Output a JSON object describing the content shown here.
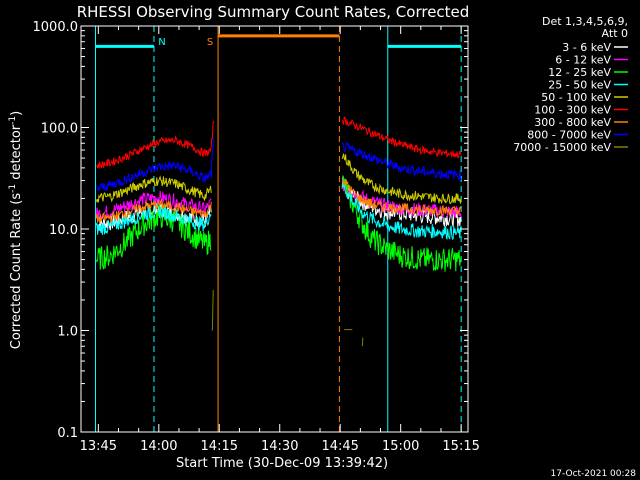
{
  "chart_data": {
    "type": "line",
    "title": "RHESSI Observing Summary Count Rates, Corrected",
    "xlabel": "Start Time (30-Dec-09 13:39:42)",
    "ylabel": "Corrected Count Rate (s-1 detector-1)",
    "ylabel_parts": {
      "main": "Corrected Count Rate (s",
      "exp1": "-1",
      "mid": " detector",
      "exp2": "-1",
      "end": ")"
    },
    "yscale": "log",
    "ylim": [
      0.1,
      1000
    ],
    "xlim_minutes": [
      13.667,
      15.3
    ],
    "x_units": "minutes after 13:00 UT",
    "x_ticks": [
      {
        "value": 45,
        "label": "13:45"
      },
      {
        "value": 60,
        "label": "14:00"
      },
      {
        "value": 75,
        "label": "14:15"
      },
      {
        "value": 90,
        "label": "14:30"
      },
      {
        "value": 105,
        "label": "14:45"
      },
      {
        "value": 120,
        "label": "15:00"
      },
      {
        "value": 135,
        "label": "15:15"
      }
    ],
    "y_ticks": [
      {
        "value": 1000,
        "label": "1000.0"
      },
      {
        "value": 100,
        "label": "100.0"
      },
      {
        "value": 10,
        "label": "10.0"
      },
      {
        "value": 1,
        "label": "1.0"
      },
      {
        "value": 0.1,
        "label": "0.1"
      }
    ],
    "legend": {
      "header": [
        "Det 1,3,4,5,6,9,",
        "Att 0"
      ],
      "placement": "right"
    },
    "series": [
      {
        "name": "3 - 6 keV",
        "color": "#ffffff",
        "noise": 0.08,
        "segments": [
          [
            [
              44.5,
              11
            ],
            [
              48,
              11.5
            ],
            [
              52,
              13
            ],
            [
              56,
              15
            ],
            [
              60,
              15.5
            ],
            [
              64,
              14.5
            ],
            [
              68,
              13
            ],
            [
              71.5,
              12
            ],
            [
              73,
              15
            ]
          ],
          [
            [
              105.5,
              25
            ],
            [
              107,
              23
            ],
            [
              109,
              20
            ],
            [
              111,
              18
            ],
            [
              113,
              16.5
            ],
            [
              116,
              15
            ],
            [
              119,
              14.5
            ],
            [
              125,
              13.5
            ],
            [
              130,
              13
            ],
            [
              135,
              12.5
            ]
          ]
        ]
      },
      {
        "name": "6 - 12 keV",
        "color": "#ff00ff",
        "noise": 0.07,
        "segments": [
          [
            [
              44.5,
              14
            ],
            [
              48,
              15
            ],
            [
              52,
              17
            ],
            [
              56,
              19.5
            ],
            [
              60,
              20.5
            ],
            [
              64,
              19
            ],
            [
              68,
              17
            ],
            [
              71.5,
              15.5
            ],
            [
              73,
              18
            ]
          ],
          [
            [
              105.5,
              28
            ],
            [
              107,
              25
            ],
            [
              109,
              22
            ],
            [
              111,
              20
            ],
            [
              113,
              18.5
            ],
            [
              116,
              17
            ],
            [
              120,
              16
            ],
            [
              125,
              15.5
            ],
            [
              130,
              15
            ],
            [
              135,
              14.5
            ]
          ]
        ]
      },
      {
        "name": "12 - 25 keV",
        "color": "#00ff00",
        "noise": 0.12,
        "segments": [
          [
            [
              44.5,
              5
            ],
            [
              48,
              5.5
            ],
            [
              52,
              7.5
            ],
            [
              56,
              11
            ],
            [
              60,
              13.5
            ],
            [
              64,
              12
            ],
            [
              68,
              9
            ],
            [
              71.5,
              7
            ],
            [
              73,
              8
            ]
          ],
          [
            [
              105.5,
              30
            ],
            [
              107,
              22
            ],
            [
              109,
              15
            ],
            [
              111,
              10.5
            ],
            [
              113,
              8
            ],
            [
              116,
              6.5
            ],
            [
              120,
              5.5
            ],
            [
              125,
              5
            ],
            [
              135,
              5
            ]
          ]
        ]
      },
      {
        "name": "25 - 50 keV",
        "color": "#00ffff",
        "noise": 0.07,
        "segments": [
          [
            [
              44.5,
              10
            ],
            [
              48,
              10.5
            ],
            [
              52,
              12
            ],
            [
              56,
              14
            ],
            [
              60,
              15
            ],
            [
              64,
              13.5
            ],
            [
              68,
              12
            ],
            [
              71.5,
              11
            ],
            [
              73,
              15
            ]
          ],
          [
            [
              105.5,
              28
            ],
            [
              107,
              22
            ],
            [
              109,
              17
            ],
            [
              111,
              14
            ],
            [
              113,
              12.5
            ],
            [
              116,
              11
            ],
            [
              120,
              10
            ],
            [
              125,
              9.5
            ],
            [
              130,
              9.5
            ],
            [
              135,
              9
            ]
          ]
        ]
      },
      {
        "name": "50 - 100 keV",
        "color": "#cccc00",
        "noise": 0.05,
        "segments": [
          [
            [
              44.5,
              20
            ],
            [
              48,
              21
            ],
            [
              52,
              24
            ],
            [
              56,
              28
            ],
            [
              60,
              30
            ],
            [
              64,
              28
            ],
            [
              68,
              24
            ],
            [
              71.5,
              21
            ],
            [
              73,
              25
            ]
          ],
          [
            [
              105.5,
              55
            ],
            [
              107,
              45
            ],
            [
              109,
              35
            ],
            [
              112,
              28
            ],
            [
              115,
              25
            ],
            [
              120,
              22
            ],
            [
              125,
              21
            ],
            [
              130,
              20
            ],
            [
              135,
              20
            ]
          ]
        ]
      },
      {
        "name": "100 - 300 keV",
        "color": "#ff0000",
        "noise": 0.04,
        "segments": [
          [
            [
              44.5,
              42
            ],
            [
              48,
              45
            ],
            [
              52,
              52
            ],
            [
              56,
              62
            ],
            [
              60,
              72
            ],
            [
              64,
              75
            ],
            [
              68,
              65
            ],
            [
              71.5,
              55
            ],
            [
              73,
              60
            ],
            [
              73.6,
              120
            ]
          ],
          [
            [
              105.5,
              120
            ],
            [
              108,
              108
            ],
            [
              112,
              92
            ],
            [
              116,
              78
            ],
            [
              120,
              68
            ],
            [
              125,
              60
            ],
            [
              130,
              56
            ],
            [
              135,
              54
            ]
          ]
        ]
      },
      {
        "name": "300 - 800 keV",
        "color": "#ff8000",
        "noise": 0.05,
        "segments": [
          [
            [
              44.5,
              12.5
            ],
            [
              48,
              13
            ],
            [
              52,
              14.5
            ],
            [
              56,
              16.5
            ],
            [
              60,
              17.5
            ],
            [
              64,
              16.5
            ],
            [
              68,
              15
            ],
            [
              71.5,
              14
            ],
            [
              73,
              17
            ]
          ],
          [
            [
              105.5,
              32
            ],
            [
              107,
              26
            ],
            [
              109,
              21
            ],
            [
              111,
              19
            ],
            [
              113,
              17.5
            ],
            [
              116,
              16.5
            ],
            [
              120,
              16
            ],
            [
              125,
              15.5
            ],
            [
              135,
              15
            ]
          ]
        ]
      },
      {
        "name": "800 - 7000 keV",
        "color": "#0000ff",
        "noise": 0.05,
        "segments": [
          [
            [
              44.5,
              25
            ],
            [
              48,
              27
            ],
            [
              52,
              31
            ],
            [
              56,
              36
            ],
            [
              60,
              41
            ],
            [
              64,
              42
            ],
            [
              68,
              37
            ],
            [
              71.5,
              31
            ],
            [
              73,
              35
            ],
            [
              73.6,
              75
            ]
          ],
          [
            [
              105.5,
              65
            ],
            [
              108,
              60
            ],
            [
              112,
              52
            ],
            [
              116,
              45
            ],
            [
              120,
              40
            ],
            [
              125,
              37
            ],
            [
              130,
              35
            ],
            [
              135,
              34
            ]
          ]
        ]
      },
      {
        "name": "7000 - 15000 keV",
        "color": "#808000",
        "noise": 0.0,
        "segments": [
          [
            [
              73.3,
              1.0
            ],
            [
              73.5,
              2.5
            ]
          ],
          [
            [
              106,
              1.02
            ],
            [
              108,
              1.02
            ]
          ],
          [
            [
              110.5,
              0.7
            ],
            [
              110.6,
              0.85
            ]
          ]
        ]
      }
    ],
    "markers": [
      {
        "type": "N",
        "label": "N",
        "color": "#00ffff",
        "start": 44.3,
        "end": 58.8
      },
      {
        "type": "S",
        "label": "S",
        "color": "#ff8000",
        "start": 74.7,
        "end": 104.8
      },
      {
        "type": "N",
        "label": "",
        "color": "#00ffff",
        "start": 116.8,
        "end": 135
      }
    ]
  },
  "footer": {
    "date": "17-Oct-2021 00:28"
  }
}
